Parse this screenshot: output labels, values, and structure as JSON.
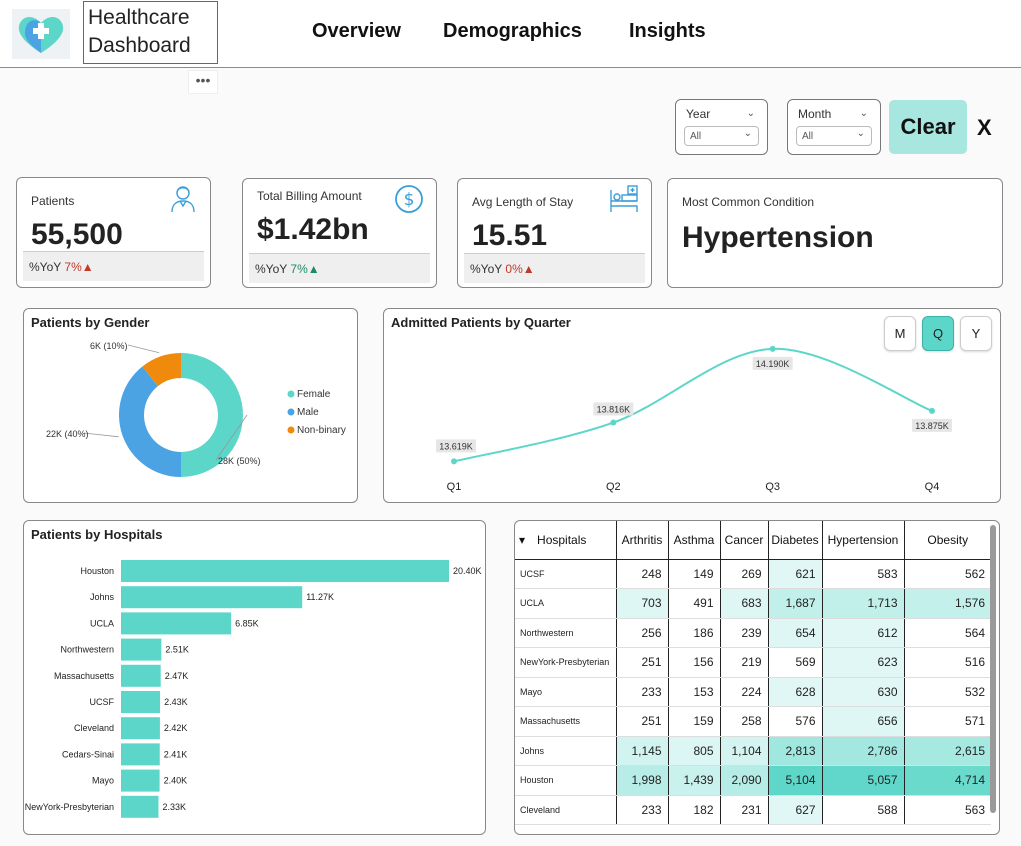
{
  "app": {
    "title_line1": "Healthcare",
    "title_line2": "Dashboard",
    "more": "•••"
  },
  "nav": {
    "overview": "Overview",
    "demographics": "Demographics",
    "insights": "Insights"
  },
  "filters": {
    "year": {
      "label": "Year",
      "value": "All"
    },
    "month": {
      "label": "Month",
      "value": "All"
    },
    "clear": "Clear",
    "close": "X"
  },
  "kpis": {
    "patients": {
      "label": "Patients",
      "value": "55,500",
      "yoy_label": "%YoY",
      "yoy": "7%",
      "trend": "▲",
      "icon": "patient-icon"
    },
    "billing": {
      "label": "Total Billing Amount",
      "value": "$1.42bn",
      "yoy_label": "%YoY",
      "yoy": "7%",
      "trend": "▲",
      "icon": "dollar-icon"
    },
    "stay": {
      "label": "Avg Length of Stay",
      "value": "15.51",
      "yoy_label": "%YoY",
      "yoy": "0%",
      "trend": "▲",
      "icon": "hospital-bed-icon"
    },
    "condition": {
      "label": "Most Common Condition",
      "value": "Hypertension"
    }
  },
  "colors": {
    "accent": "#5bd6c8",
    "male": "#4ba3e3",
    "nonbinary": "#f08a0c",
    "negative": "#c0392b",
    "positive": "#1e8a6a"
  },
  "chart_data": [
    {
      "type": "pie",
      "title": "Patients by Gender",
      "categories": [
        "Female",
        "Male",
        "Non-binary"
      ],
      "values": [
        28000,
        22000,
        6000
      ],
      "labels": [
        "28K (50%)",
        "22K (40%)",
        "6K (10%)"
      ],
      "colors": [
        "#5bd6c8",
        "#4ba3e3",
        "#f08a0c"
      ],
      "legend": "right"
    },
    {
      "type": "line",
      "title": "Admitted Patients by Quarter",
      "categories": [
        "Q1",
        "Q2",
        "Q3",
        "Q4"
      ],
      "values": [
        13.619,
        13.816,
        14.19,
        13.875
      ],
      "labels": [
        "13.619K",
        "13.816K",
        "14.190K",
        "13.875K"
      ],
      "ylim": [
        13.55,
        14.25
      ],
      "granularity": [
        "M",
        "Q",
        "Y"
      ],
      "selected": "Q"
    },
    {
      "type": "bar",
      "title": "Patients by Hospitals",
      "categories": [
        "Houston",
        "Johns",
        "UCLA",
        "Northwestern",
        "Massachusetts",
        "UCSF",
        "Cleveland",
        "Cedars-Sinai",
        "Mayo",
        "NewYork-Presbyterian"
      ],
      "values": [
        20.4,
        11.27,
        6.85,
        2.51,
        2.47,
        2.43,
        2.42,
        2.41,
        2.4,
        2.33
      ],
      "labels": [
        "20.40K",
        "11.27K",
        "6.85K",
        "2.51K",
        "2.47K",
        "2.43K",
        "2.42K",
        "2.41K",
        "2.40K",
        "2.33K"
      ],
      "xlim": [
        0,
        20.4
      ]
    },
    {
      "type": "table",
      "columns": [
        "Hospitals",
        "Arthritis",
        "Asthma",
        "Cancer",
        "Diabetes",
        "Hypertension",
        "Obesity"
      ],
      "rows": [
        [
          "UCSF",
          "248",
          "149",
          "269",
          "621",
          "583",
          "562"
        ],
        [
          "UCLA",
          "703",
          "491",
          "683",
          "1,687",
          "1,713",
          "1,576"
        ],
        [
          "Northwestern",
          "256",
          "186",
          "239",
          "654",
          "612",
          "564"
        ],
        [
          "NewYork-Presbyterian",
          "251",
          "156",
          "219",
          "569",
          "623",
          "516"
        ],
        [
          "Mayo",
          "233",
          "153",
          "224",
          "628",
          "630",
          "532"
        ],
        [
          "Massachusetts",
          "251",
          "159",
          "258",
          "576",
          "656",
          "571"
        ],
        [
          "Johns",
          "1,145",
          "805",
          "1,104",
          "2,813",
          "2,786",
          "2,615"
        ],
        [
          "Houston",
          "1,998",
          "1,439",
          "2,090",
          "5,104",
          "5,057",
          "4,714"
        ],
        [
          "Cleveland",
          "233",
          "182",
          "231",
          "627",
          "588",
          "563"
        ]
      ]
    }
  ]
}
